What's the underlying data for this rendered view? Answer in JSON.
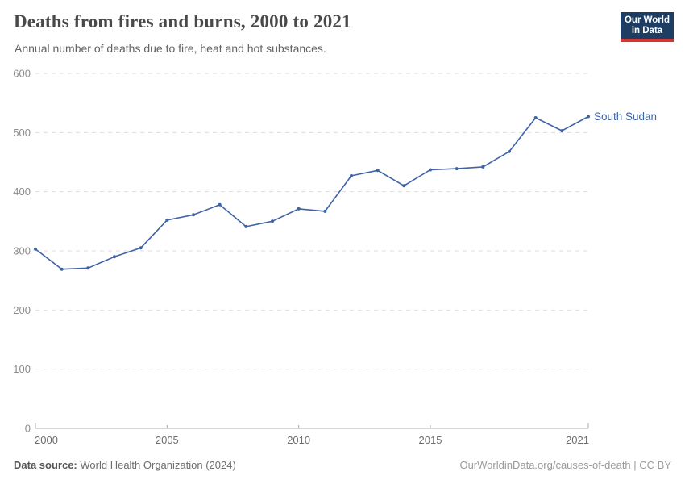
{
  "header": {
    "title": "Deaths from fires and burns, 2000 to 2021",
    "subtitle": "Annual number of deaths due to fire, heat and hot substances."
  },
  "logo": {
    "line1": "Our World",
    "line2": "in Data",
    "bg_color": "#1d3d63",
    "accent_color": "#d8352e"
  },
  "chart_data": {
    "type": "line",
    "title": "Deaths from fires and burns, 2000 to 2021",
    "subtitle": "Annual number of deaths due to fire, heat and hot substances.",
    "x": [
      2000,
      2001,
      2002,
      2003,
      2004,
      2005,
      2006,
      2007,
      2008,
      2009,
      2010,
      2011,
      2012,
      2013,
      2014,
      2015,
      2016,
      2017,
      2018,
      2019,
      2020,
      2021
    ],
    "series": [
      {
        "name": "South Sudan",
        "color": "#3e63a7",
        "values": [
          303,
          269,
          271,
          290,
          305,
          352,
          361,
          378,
          341,
          350,
          371,
          367,
          427,
          436,
          410,
          437,
          439,
          442,
          468,
          525,
          503,
          527
        ]
      }
    ],
    "xlabel": "",
    "ylabel": "",
    "ylim": [
      0,
      600
    ],
    "y_ticks": [
      0,
      100,
      200,
      300,
      400,
      500,
      600
    ],
    "x_ticks": [
      2000,
      2005,
      2010,
      2015,
      2021
    ],
    "grid": "horizontal-dashed",
    "legend_position": "end-of-line-label",
    "axis_color": "#a8a8a8",
    "gridline_color": "#dedede",
    "y_tick_label_color": "#8b8b8b",
    "x_tick_label_color": "#6e6e6e"
  },
  "footer": {
    "source_label": "Data source:",
    "source_value": "World Health Organization (2024)",
    "license": "OurWorldinData.org/causes-of-death | CC BY"
  }
}
